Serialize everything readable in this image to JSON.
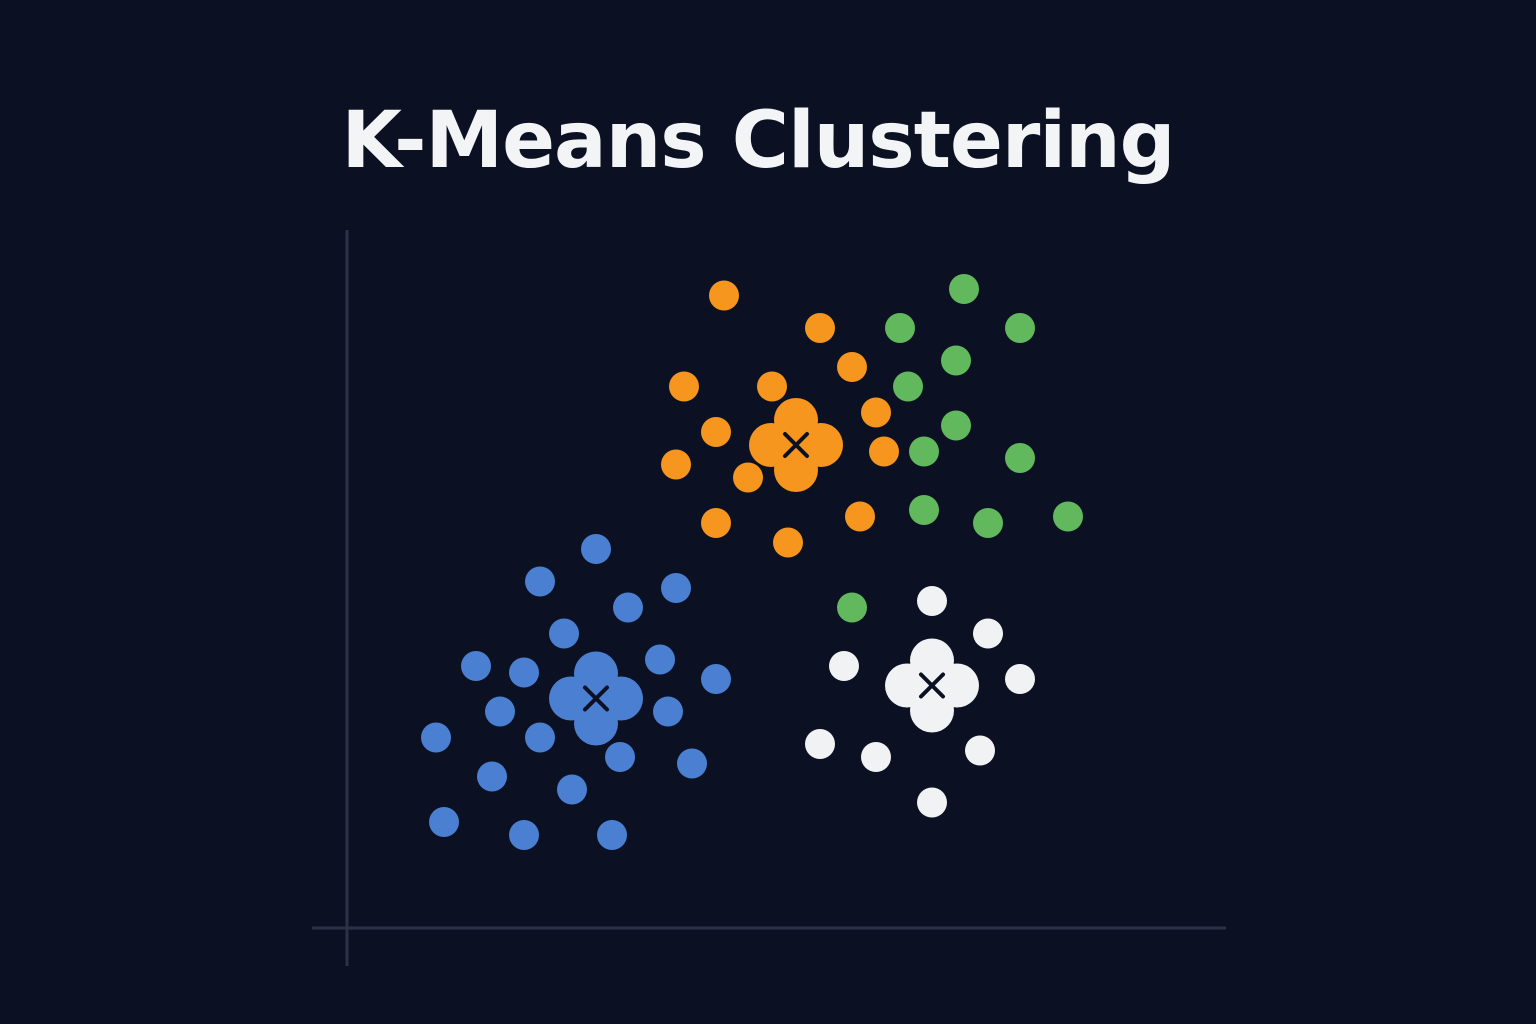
{
  "title": "K-Means Clustering",
  "chart_data": {
    "type": "scatter",
    "title": "K-Means Clustering",
    "xlabel": "",
    "ylabel": "",
    "xlim": [
      0,
      10
    ],
    "ylim": [
      0,
      10
    ],
    "grid": false,
    "legend": "none",
    "axis_color": "#2b3246",
    "background": "#0b1122",
    "centroid_marker_color": "#0b1122",
    "series": [
      {
        "color": "#f6961e",
        "points": [
          [
            4.3,
            9.3
          ],
          [
            5.5,
            8.8
          ],
          [
            5.9,
            8.2
          ],
          [
            3.8,
            7.9
          ],
          [
            4.9,
            7.9
          ],
          [
            6.2,
            7.5
          ],
          [
            4.2,
            7.2
          ],
          [
            6.3,
            6.9
          ],
          [
            3.7,
            6.7
          ],
          [
            4.6,
            6.5
          ],
          [
            6.0,
            5.9
          ],
          [
            4.2,
            5.8
          ],
          [
            5.1,
            5.5
          ]
        ],
        "centroid": [
          5.2,
          7.0
        ]
      },
      {
        "color": "#62b85c",
        "points": [
          [
            7.3,
            9.4
          ],
          [
            6.5,
            8.8
          ],
          [
            8.0,
            8.8
          ],
          [
            7.2,
            8.3
          ],
          [
            6.6,
            7.9
          ],
          [
            7.2,
            7.3
          ],
          [
            6.8,
            6.9
          ],
          [
            8.0,
            6.8
          ],
          [
            6.8,
            6.0
          ],
          [
            7.6,
            5.8
          ],
          [
            8.6,
            5.9
          ],
          [
            5.9,
            4.5
          ]
        ],
        "centroid": null
      },
      {
        "color": "#4a7fd2",
        "points": [
          [
            2.7,
            5.4
          ],
          [
            2.0,
            4.9
          ],
          [
            3.1,
            4.5
          ],
          [
            3.7,
            4.8
          ],
          [
            2.3,
            4.1
          ],
          [
            3.5,
            3.7
          ],
          [
            1.2,
            3.6
          ],
          [
            1.8,
            3.5
          ],
          [
            4.2,
            3.4
          ],
          [
            1.5,
            2.9
          ],
          [
            3.6,
            2.9
          ],
          [
            0.7,
            2.5
          ],
          [
            2.0,
            2.5
          ],
          [
            3.0,
            2.2
          ],
          [
            3.9,
            2.1
          ],
          [
            1.4,
            1.9
          ],
          [
            2.4,
            1.7
          ],
          [
            0.8,
            1.2
          ],
          [
            1.8,
            1.0
          ],
          [
            2.9,
            1.0
          ]
        ],
        "centroid": [
          2.7,
          3.1
        ]
      },
      {
        "color": "#f1f2f4",
        "points": [
          [
            6.9,
            4.6
          ],
          [
            7.6,
            4.1
          ],
          [
            5.8,
            3.6
          ],
          [
            8.0,
            3.4
          ],
          [
            5.5,
            2.4
          ],
          [
            6.2,
            2.2
          ],
          [
            7.5,
            2.3
          ],
          [
            6.9,
            1.5
          ]
        ],
        "centroid": [
          6.9,
          3.3
        ]
      }
    ]
  }
}
